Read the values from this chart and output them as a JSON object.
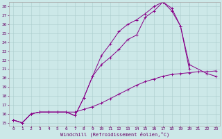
{
  "xlabel": "Windchill (Refroidissement éolien,°C)",
  "bg_color": "#cce8e8",
  "line_color": "#880088",
  "xlim": [
    -0.5,
    23.5
  ],
  "ylim": [
    14.7,
    28.5
  ],
  "yticks": [
    15,
    16,
    17,
    18,
    19,
    20,
    21,
    22,
    23,
    24,
    25,
    26,
    27,
    28
  ],
  "xticks": [
    0,
    1,
    2,
    3,
    4,
    5,
    6,
    7,
    8,
    9,
    10,
    11,
    12,
    13,
    14,
    15,
    16,
    17,
    18,
    19,
    20,
    21,
    22,
    23
  ],
  "line1_x": [
    0,
    1,
    2,
    3,
    4,
    5,
    6,
    7,
    8,
    9,
    10,
    11,
    12,
    13,
    14,
    15,
    16,
    17,
    18,
    19,
    20,
    22,
    23
  ],
  "line1_y": [
    15.3,
    15.0,
    16.0,
    16.2,
    16.2,
    16.2,
    16.2,
    15.8,
    17.8,
    20.2,
    21.5,
    22.3,
    23.2,
    24.3,
    24.8,
    26.8,
    27.5,
    28.5,
    27.8,
    25.8,
    21.5,
    20.5,
    20.2
  ],
  "line2_x": [
    0,
    1,
    2,
    3,
    4,
    5,
    6,
    7,
    8,
    9,
    10,
    11,
    12,
    13,
    14,
    15,
    16,
    17,
    18,
    19,
    20,
    21,
    22,
    23
  ],
  "line2_y": [
    15.3,
    15.0,
    16.0,
    16.2,
    16.2,
    16.2,
    16.2,
    16.2,
    16.5,
    16.8,
    17.2,
    17.7,
    18.2,
    18.7,
    19.2,
    19.6,
    19.9,
    20.2,
    20.4,
    20.5,
    20.6,
    20.7,
    20.7,
    20.8
  ],
  "line3_x": [
    0,
    1,
    2,
    3,
    4,
    5,
    6,
    7,
    8,
    9,
    10,
    11,
    12,
    13,
    14,
    15,
    16,
    17,
    18,
    19,
    20
  ],
  "line3_y": [
    15.3,
    15.0,
    16.0,
    16.2,
    16.2,
    16.2,
    16.2,
    15.8,
    17.8,
    20.2,
    22.5,
    23.8,
    25.2,
    26.0,
    26.5,
    27.2,
    28.0,
    28.5,
    27.5,
    25.8,
    21.0
  ]
}
